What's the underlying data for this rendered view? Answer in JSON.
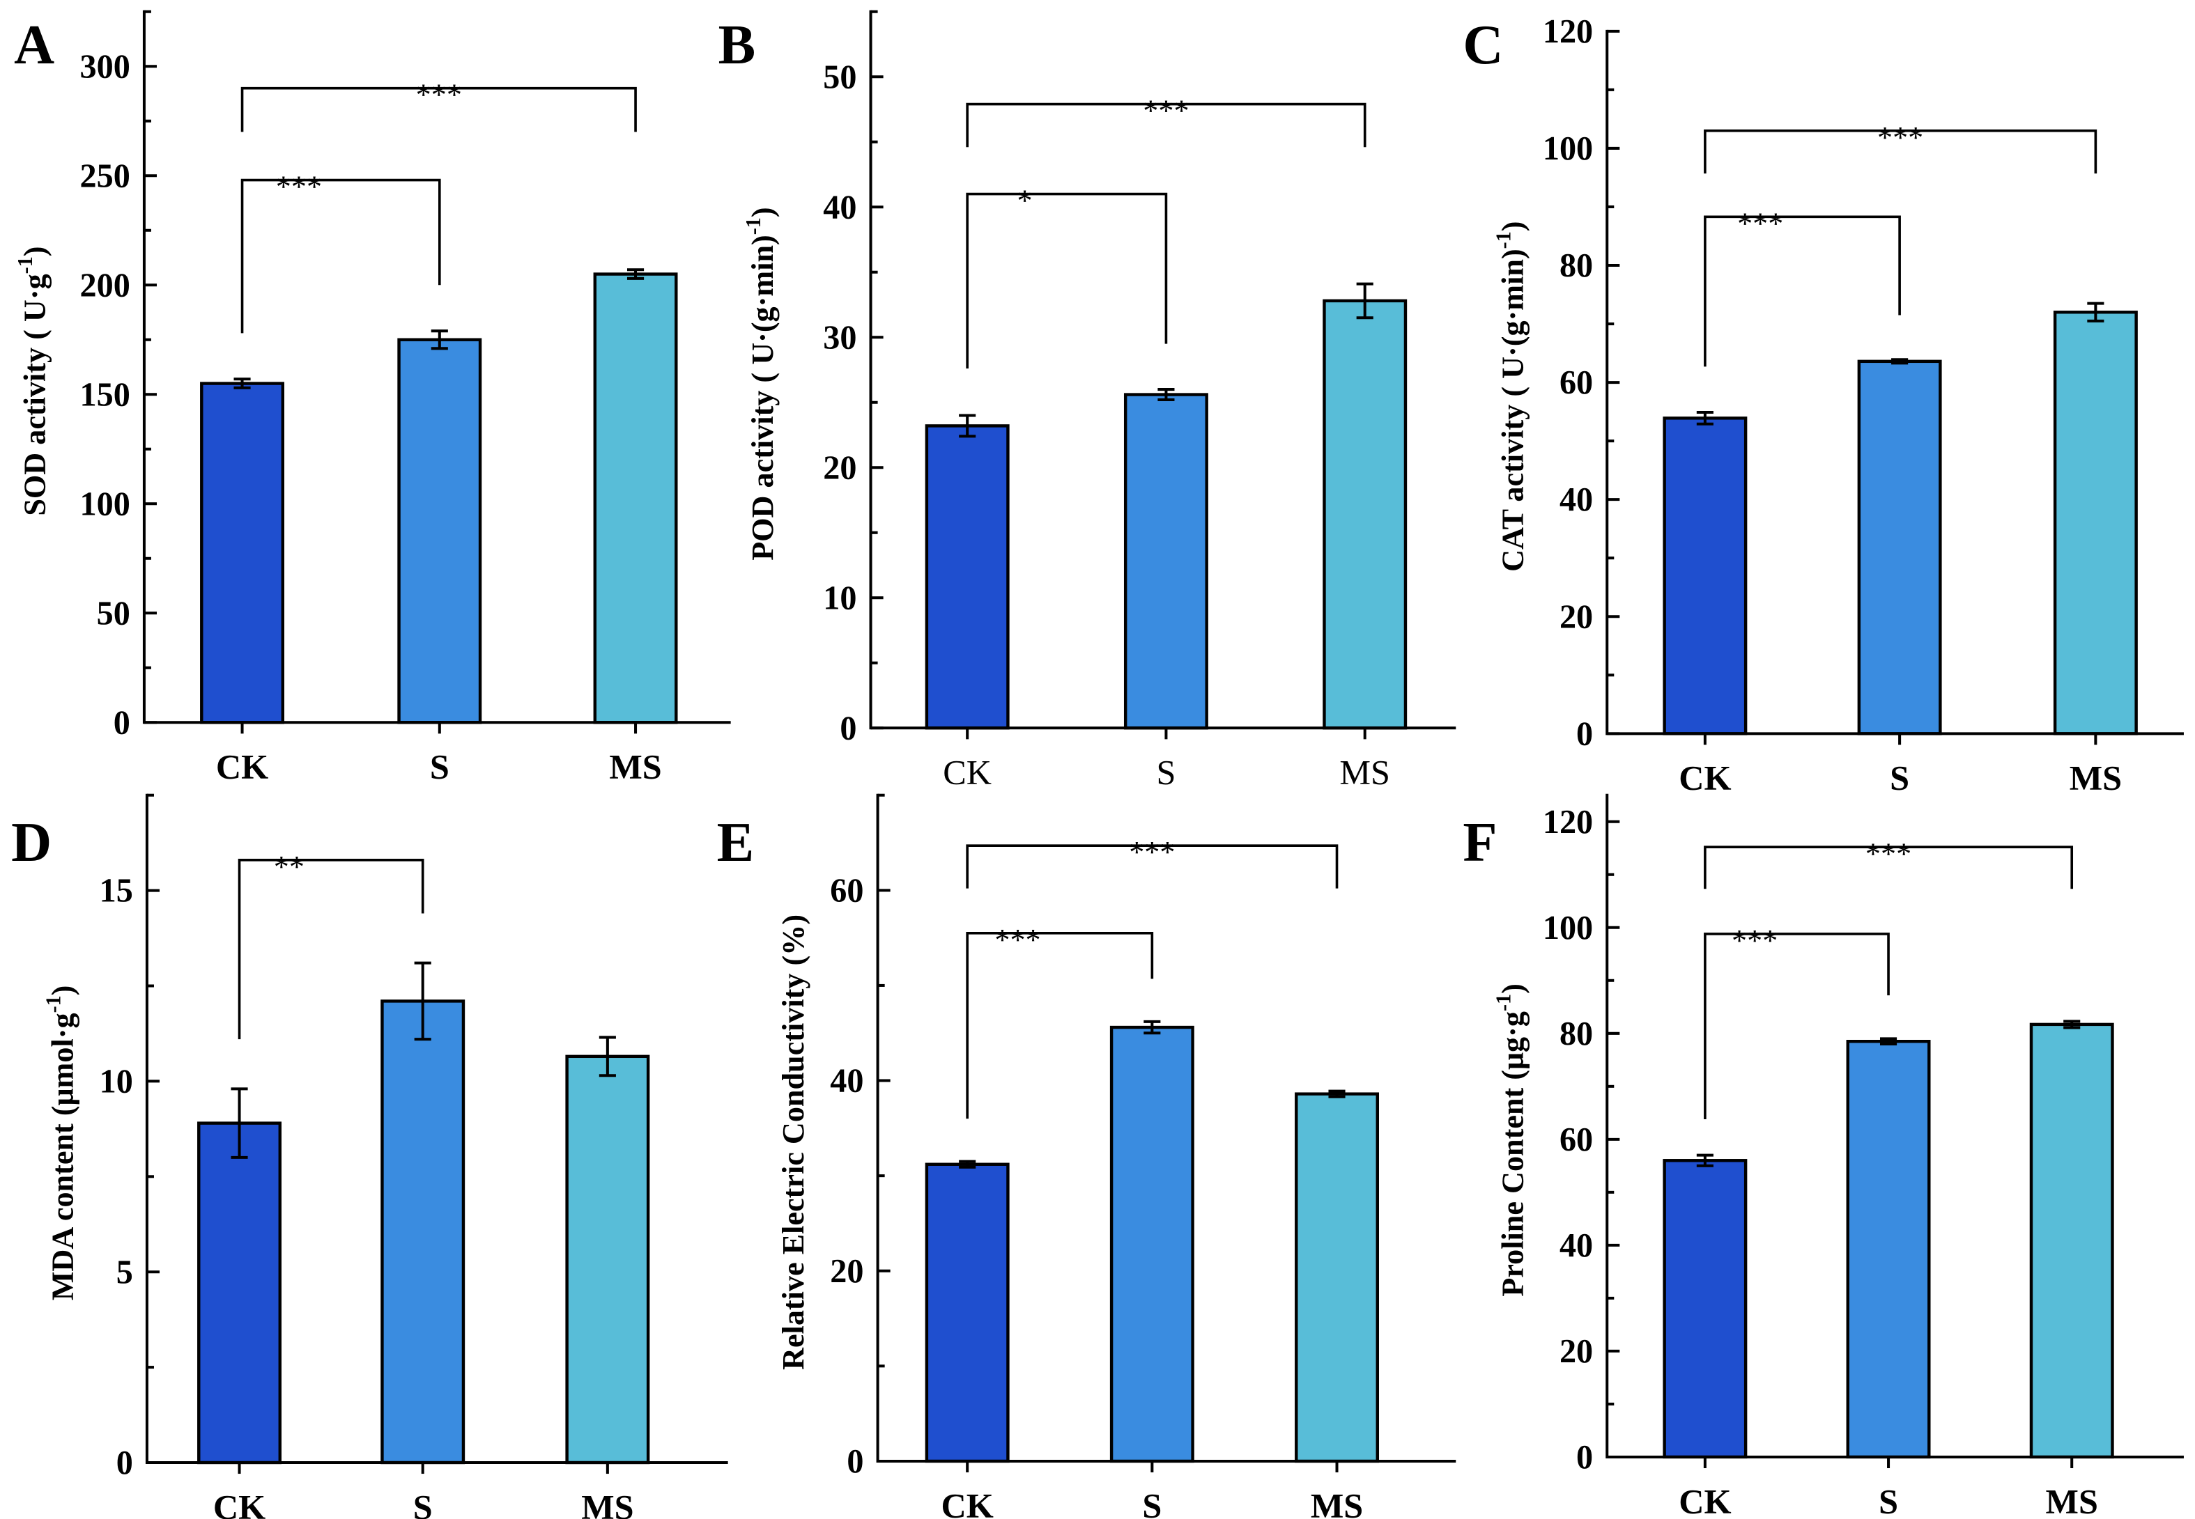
{
  "chart_data": [
    {
      "type": "bar",
      "panel": "A",
      "categories": [
        "CK",
        "S",
        "MS"
      ],
      "values": [
        155,
        175,
        205
      ],
      "errors": [
        2,
        4,
        2
      ],
      "ylabel": {
        "main": "SOD activity ( U·g",
        "sup": "-1",
        "end": ")"
      },
      "ylim": [
        0,
        325
      ],
      "yticks": [
        0,
        50,
        100,
        150,
        200,
        250,
        300
      ],
      "minor": 25,
      "x_bold": true,
      "significance": [
        {
          "from": "CK",
          "to": "S",
          "y": 248,
          "legs": [
            178,
            200
          ],
          "label": "***"
        },
        {
          "from": "CK",
          "to": "MS",
          "y": 290,
          "legs": [
            270,
            270
          ],
          "label": "***"
        }
      ]
    },
    {
      "type": "bar",
      "panel": "B",
      "categories": [
        "CK",
        "S",
        "MS"
      ],
      "values": [
        23.2,
        25.6,
        32.8
      ],
      "errors": [
        0.8,
        0.4,
        1.3
      ],
      "ylabel": {
        "main": "POD activity ( U·(g·min)",
        "sup": "-1",
        "end": ")"
      },
      "ylim": [
        0,
        55
      ],
      "yticks": [
        0,
        10,
        20,
        30,
        40,
        50
      ],
      "minor": 5,
      "x_bold": false,
      "significance": [
        {
          "from": "CK",
          "to": "S",
          "y": 41,
          "legs": [
            27.6,
            29.5
          ],
          "label": "*"
        },
        {
          "from": "CK",
          "to": "MS",
          "y": 47.9,
          "legs": [
            44.6,
            44.6
          ],
          "label": "***"
        }
      ]
    },
    {
      "type": "bar",
      "panel": "C",
      "categories": [
        "CK",
        "S",
        "MS"
      ],
      "values": [
        53.9,
        63.6,
        72
      ],
      "errors": [
        1,
        0.3,
        1.5
      ],
      "ylabel": {
        "main": "CAT activity ( U·(g·min)",
        "sup": "-1",
        "end": ")"
      },
      "ylim": [
        0,
        120
      ],
      "yticks": [
        0,
        20,
        40,
        60,
        80,
        100,
        120
      ],
      "minor": 10,
      "x_bold": true,
      "significance": [
        {
          "from": "CK",
          "to": "S",
          "y": 88.3,
          "legs": [
            62.7,
            71.5
          ],
          "label": "***"
        },
        {
          "from": "CK",
          "to": "MS",
          "y": 103,
          "legs": [
            95.7,
            95.7
          ],
          "label": "***"
        }
      ]
    },
    {
      "type": "bar",
      "panel": "D",
      "categories": [
        "CK",
        "S",
        "MS"
      ],
      "values": [
        8.9,
        12.1,
        10.65
      ],
      "errors": [
        0.9,
        1.0,
        0.5
      ],
      "ylabel": {
        "main": "MDA content (μmol·g",
        "sup": "-1",
        "end": ")"
      },
      "ylim": [
        0,
        17.5
      ],
      "yticks": [
        0,
        5,
        10,
        15
      ],
      "minor": 2.5,
      "x_bold": true,
      "significance": [
        {
          "from": "CK",
          "to": "S",
          "y": 15.8,
          "legs": [
            11.1,
            14.4
          ],
          "label": "**"
        }
      ]
    },
    {
      "type": "bar",
      "panel": "E",
      "categories": [
        "CK",
        "S",
        "MS"
      ],
      "values": [
        31.2,
        45.6,
        38.6
      ],
      "errors": [
        0.3,
        0.6,
        0.3
      ],
      "ylabel": {
        "main": "Relative Electric Conductivity (%)",
        "sup": "",
        "end": ""
      },
      "ylim": [
        0,
        70
      ],
      "yticks": [
        0,
        20,
        40,
        60
      ],
      "minor": 10,
      "x_bold": true,
      "significance": [
        {
          "from": "CK",
          "to": "S",
          "y": 55.5,
          "legs": [
            36,
            50.7
          ],
          "label": "***"
        },
        {
          "from": "CK",
          "to": "MS",
          "y": 64.7,
          "legs": [
            60.2,
            60.2
          ],
          "label": "***"
        }
      ]
    },
    {
      "type": "bar",
      "panel": "F",
      "categories": [
        "CK",
        "S",
        "MS"
      ],
      "values": [
        56,
        78.5,
        81.7
      ],
      "errors": [
        1,
        0.5,
        0.6
      ],
      "ylabel": {
        "main": "Proline Content (μg·g",
        "sup": "-1",
        "end": ")"
      },
      "ylim": [
        0,
        125
      ],
      "yticks": [
        0,
        20,
        40,
        60,
        80,
        100,
        120
      ],
      "minor": 10,
      "x_bold": true,
      "significance": [
        {
          "from": "CK",
          "to": "S",
          "y": 98.8,
          "legs": [
            63.8,
            87.2
          ],
          "label": "***"
        },
        {
          "from": "CK",
          "to": "MS",
          "y": 115.2,
          "legs": [
            107.3,
            107.3
          ],
          "label": "***"
        }
      ]
    }
  ],
  "colors": {
    "CK": "#1f4fcf",
    "S": "#3a8ce0",
    "MS": "#58bdd8"
  }
}
